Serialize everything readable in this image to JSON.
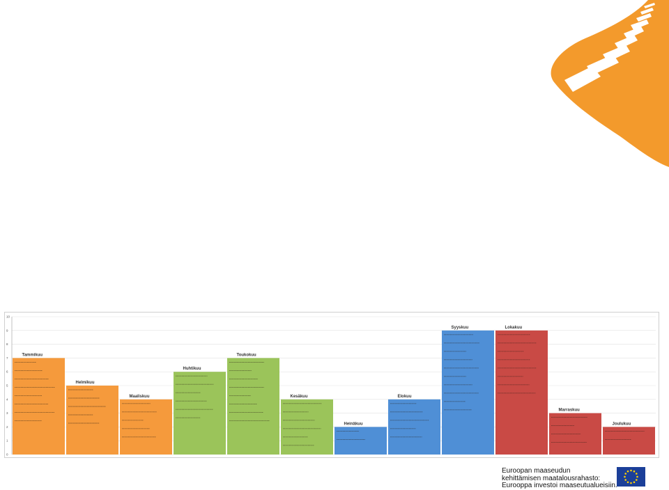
{
  "eu_caption": {
    "line1": "Euroopan maaseudun",
    "line2": "kehittämisen maatalousrahasto:",
    "line3": "Eurooppa investoi maaseutualueisiin."
  },
  "colors": {
    "logo": "#f39a2c",
    "winter_spring": "#f59a3c",
    "spring_summer": "#9bc45a",
    "summer_autumn": "#4f8fd6",
    "autumn": "#c94a45",
    "eu_flag": "#1b3f99",
    "eu_stars": "#ffd200"
  },
  "chart_data": {
    "type": "bar",
    "categories": [
      "Tammikuu",
      "Helmikuu",
      "Maaliskuu",
      "Huhtikuu",
      "Toukokuu",
      "Kesäkuu",
      "Heinäkuu",
      "Elokuu",
      "Syyskuu",
      "Lokakuu",
      "Marraskuu",
      "Joulukuu"
    ],
    "values": [
      7,
      5,
      4,
      6,
      7,
      4,
      2,
      4,
      9,
      9,
      3,
      2
    ],
    "bar_colors": [
      "#f59a3c",
      "#f59a3c",
      "#f59a3c",
      "#9bc45a",
      "#9bc45a",
      "#9bc45a",
      "#4f8fd6",
      "#4f8fd6",
      "#4f8fd6",
      "#c94a45",
      "#c94a45",
      "#c94a45"
    ],
    "y_ticks": [
      "0",
      "1",
      "2",
      "3",
      "4",
      "5",
      "6",
      "7",
      "8",
      "9",
      "10"
    ],
    "ylim": [
      0,
      10
    ],
    "grid": true,
    "bullets_per_bar": [
      8,
      5,
      5,
      6,
      8,
      6,
      2,
      5,
      10,
      8,
      4,
      2
    ]
  }
}
